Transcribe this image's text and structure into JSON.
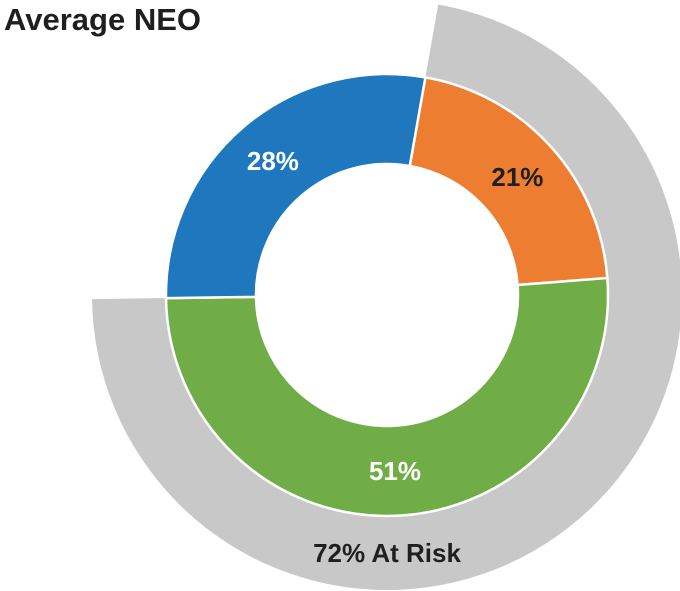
{
  "chart_data": {
    "type": "pie",
    "title": "Average NEO",
    "slices": [
      {
        "label": "21%",
        "value": 21,
        "color": "#ED7D31",
        "label_color": "#1f1f1f"
      },
      {
        "label": "51%",
        "value": 51,
        "color": "#70AD47",
        "label_color": "#ffffff"
      },
      {
        "label": "28%",
        "value": 28,
        "color": "#1F77BD",
        "label_color": "#ffffff"
      }
    ],
    "outer_ring": {
      "label": "72% At Risk",
      "value": 72,
      "color": "#C8C8C8"
    }
  }
}
